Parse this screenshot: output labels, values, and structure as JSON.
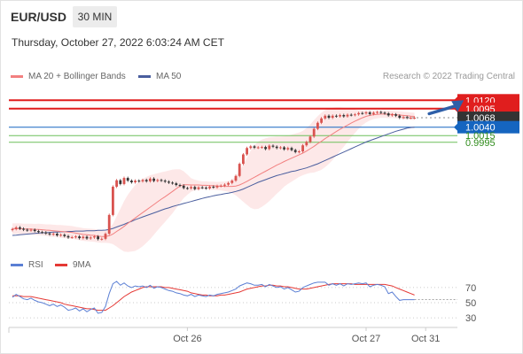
{
  "header": {
    "pair": "EUR/USD",
    "timeframe": "30 MIN"
  },
  "timestamp": "Thursday, October 27, 2022 6:03:24 AM CET",
  "credit": "Research © 2022 Trading Central",
  "colors": {
    "red": "#e01e1e",
    "blue": "#1565c0",
    "green": "#6cbf5a",
    "ma20": "#f28080",
    "ma50": "#4a5e9e",
    "band": "#fde6e6",
    "up": "#d9534f",
    "down": "#333333",
    "rsi": "#5b7fd4",
    "rsi_ma": "#e53935",
    "current": "#333333"
  },
  "chart_data": [
    {
      "type": "line",
      "title": "",
      "legend": {
        "placement": "top-left",
        "items": [
          {
            "label": "MA 20 + Bollinger Bands",
            "color": "#f28080"
          },
          {
            "label": "MA 50",
            "color": "#4a5e9e"
          }
        ]
      },
      "x_ticks": [
        {
          "label": "Oct 26",
          "index": 47
        },
        {
          "label": "Oct 27",
          "index": 95
        },
        {
          "label": "Oct 31",
          "index": 111
        }
      ],
      "ylim": [
        0.9676,
        1.0155
      ],
      "levels": [
        {
          "value": 1.012,
          "label": "1.0120",
          "style": "resistance"
        },
        {
          "value": 1.0095,
          "label": "1.0095",
          "style": "resistance"
        },
        {
          "value": 1.0068,
          "label": "1.0068",
          "style": "current"
        },
        {
          "value": 1.004,
          "label": "1.0040",
          "style": "pivot"
        },
        {
          "value": 1.0015,
          "label": "1.0015",
          "style": "support"
        },
        {
          "value": 0.9995,
          "label": "0.9995",
          "style": "support"
        }
      ],
      "series": [
        {
          "key": "close",
          "values": [
            0.9737,
            0.9742,
            0.9738,
            0.9735,
            0.9733,
            0.9735,
            0.9731,
            0.9728,
            0.9727,
            0.9724,
            0.9721,
            0.9723,
            0.9718,
            0.972,
            0.9716,
            0.9712,
            0.9713,
            0.9715,
            0.971,
            0.9714,
            0.9709,
            0.9712,
            0.9715,
            0.9707,
            0.9708,
            0.9723,
            0.9779,
            0.9863,
            0.9882,
            0.9871,
            0.9889,
            0.9881,
            0.9876,
            0.9881,
            0.9879,
            0.9883,
            0.9879,
            0.9887,
            0.988,
            0.9883,
            0.9881,
            0.9878,
            0.9875,
            0.9873,
            0.9868,
            0.9866,
            0.9859,
            0.9858,
            0.9862,
            0.9856,
            0.9861,
            0.986,
            0.9858,
            0.9863,
            0.9861,
            0.9865,
            0.9866,
            0.9869,
            0.9874,
            0.9881,
            0.9895,
            0.9931,
            0.9959,
            0.9978,
            0.9983,
            0.9979,
            0.998,
            0.9981,
            0.9975,
            0.9985,
            0.9982,
            0.9978,
            0.998,
            0.9974,
            0.9978,
            0.9972,
            0.9966,
            0.9968,
            0.9986,
            0.9996,
            1.0012,
            1.0035,
            1.0053,
            1.0066,
            1.0074,
            1.0068,
            1.0074,
            1.0072,
            1.0076,
            1.0072,
            1.0077,
            1.0076,
            1.0078,
            1.0082,
            1.0081,
            1.0084,
            1.0079,
            1.0083,
            1.0085,
            1.0083,
            1.0081,
            1.0075,
            1.0078,
            1.0074,
            1.0068,
            1.007,
            1.0068,
            1.0068,
            1.0068
          ]
        },
        {
          "key": "ma20",
          "values": [
            0.9738,
            0.9738,
            0.9738,
            0.9737,
            0.9737,
            0.9737,
            0.9736,
            0.9736,
            0.9735,
            0.9734,
            0.9733,
            0.9732,
            0.9731,
            0.973,
            0.9729,
            0.9728,
            0.9727,
            0.9725,
            0.9723,
            0.9721,
            0.972,
            0.9719,
            0.9718,
            0.9716,
            0.9715,
            0.9715,
            0.9717,
            0.9722,
            0.973,
            0.9737,
            0.9745,
            0.9754,
            0.9762,
            0.977,
            0.9778,
            0.9786,
            0.9794,
            0.9802,
            0.981,
            0.9818,
            0.9826,
            0.9833,
            0.9841,
            0.9849,
            0.9857,
            0.9865,
            0.9869,
            0.9869,
            0.9868,
            0.9868,
            0.9868,
            0.9867,
            0.9867,
            0.9866,
            0.9866,
            0.9865,
            0.9865,
            0.9864,
            0.9864,
            0.9864,
            0.9865,
            0.9868,
            0.9873,
            0.9879,
            0.9885,
            0.9891,
            0.9897,
            0.9903,
            0.9909,
            0.9915,
            0.9921,
            0.9927,
            0.9932,
            0.9938,
            0.9943,
            0.9948,
            0.9953,
            0.9958,
            0.9963,
            0.9969,
            0.9976,
            0.9983,
            0.9991,
            0.9998,
            1.0006,
            1.0013,
            1.002,
            1.0027,
            1.0034,
            1.004,
            1.0046,
            1.0052,
            1.0058,
            1.0063,
            1.0068,
            1.0072,
            1.0075,
            1.0077,
            1.0078,
            1.0079,
            1.0079,
            1.0078,
            1.0078,
            1.0077,
            1.0076,
            1.0075,
            1.0074,
            1.0073,
            1.0072
          ]
        },
        {
          "key": "ma50",
          "values": [
            0.9718,
            0.9719,
            0.972,
            0.9721,
            0.9722,
            0.9723,
            0.9724,
            0.9725,
            0.9726,
            0.9726,
            0.9727,
            0.9728,
            0.9728,
            0.9729,
            0.9729,
            0.973,
            0.973,
            0.9731,
            0.9731,
            0.9731,
            0.9732,
            0.9732,
            0.9732,
            0.9733,
            0.9733,
            0.9734,
            0.9736,
            0.9739,
            0.9743,
            0.9747,
            0.9751,
            0.9756,
            0.976,
            0.9765,
            0.9769,
            0.9773,
            0.9777,
            0.9781,
            0.9785,
            0.9789,
            0.9793,
            0.9797,
            0.98,
            0.9804,
            0.9807,
            0.981,
            0.9813,
            0.9816,
            0.9819,
            0.9822,
            0.9825,
            0.9828,
            0.9831,
            0.9833,
            0.9836,
            0.9838,
            0.984,
            0.9842,
            0.9844,
            0.9846,
            0.9849,
            0.9852,
            0.9856,
            0.9861,
            0.9866,
            0.9871,
            0.9876,
            0.988,
            0.9884,
            0.9888,
            0.9892,
            0.9896,
            0.9899,
            0.9902,
            0.9905,
            0.9908,
            0.991,
            0.9913,
            0.9916,
            0.9919,
            0.9923,
            0.9927,
            0.9931,
            0.9936,
            0.9941,
            0.9946,
            0.9951,
            0.9956,
            0.9961,
            0.9966,
            0.9971,
            0.9976,
            0.9981,
            0.9986,
            0.9991,
            0.9996,
            1.0,
            1.0004,
            1.0008,
            1.0012,
            1.0016,
            1.002,
            1.0024,
            1.0028,
            1.0031,
            1.0034,
            1.0037,
            1.0039,
            1.004
          ]
        }
      ],
      "bollinger_band_width": [
        0.0016,
        0.0016,
        0.0016,
        0.0016,
        0.0016,
        0.0016,
        0.0016,
        0.0017,
        0.0017,
        0.0017,
        0.0018,
        0.0018,
        0.0018,
        0.0019,
        0.0019,
        0.0019,
        0.0019,
        0.0019,
        0.0019,
        0.0019,
        0.0019,
        0.0019,
        0.0019,
        0.0019,
        0.0019,
        0.0019,
        0.0022,
        0.003,
        0.0045,
        0.006,
        0.0075,
        0.0085,
        0.0092,
        0.0098,
        0.01,
        0.01,
        0.0098,
        0.0095,
        0.009,
        0.0085,
        0.008,
        0.0075,
        0.007,
        0.0065,
        0.0058,
        0.005,
        0.004,
        0.003,
        0.002,
        0.0016,
        0.0013,
        0.0012,
        0.0012,
        0.0012,
        0.0012,
        0.0012,
        0.0013,
        0.0014,
        0.0016,
        0.002,
        0.0028,
        0.004,
        0.0055,
        0.007,
        0.0085,
        0.0095,
        0.01,
        0.01,
        0.0098,
        0.0095,
        0.009,
        0.0085,
        0.008,
        0.0075,
        0.0072,
        0.007,
        0.0068,
        0.0066,
        0.0066,
        0.0068,
        0.0072,
        0.0078,
        0.0082,
        0.0085,
        0.0085,
        0.0082,
        0.0078,
        0.0072,
        0.0065,
        0.0058,
        0.005,
        0.0042,
        0.0035,
        0.0028,
        0.0022,
        0.0018,
        0.0015,
        0.0013,
        0.0012,
        0.0011,
        0.0011,
        0.0011,
        0.0011,
        0.0011,
        0.0011,
        0.0011,
        0.0011,
        0.0011,
        0.0011
      ],
      "projection": {
        "from_index": 111,
        "from_value": 1.008,
        "to_index": 121,
        "to_value": 1.012
      }
    },
    {
      "type": "line",
      "title": "",
      "legend": {
        "placement": "top-left",
        "items": [
          {
            "label": "RSI",
            "color": "#5b7fd4"
          },
          {
            "label": "9MA",
            "color": "#e53935"
          }
        ]
      },
      "ylim": [
        22,
        78
      ],
      "y_ticks": [
        {
          "value": 70,
          "label": "70"
        },
        {
          "value": 50,
          "label": "50"
        },
        {
          "value": 30,
          "label": "30"
        }
      ],
      "series": [
        {
          "key": "rsi",
          "values": [
            57,
            61,
            58,
            55,
            54,
            56,
            53,
            51,
            50,
            48,
            46,
            48,
            45,
            47,
            44,
            40,
            41,
            43,
            39,
            42,
            38,
            41,
            43,
            36,
            37,
            45,
            62,
            75,
            78,
            73,
            76,
            72,
            70,
            72,
            71,
            72,
            70,
            73,
            69,
            71,
            70,
            68,
            66,
            65,
            63,
            62,
            60,
            59,
            61,
            58,
            60,
            59,
            58,
            60,
            59,
            61,
            62,
            63,
            64,
            66,
            68,
            72,
            74,
            76,
            75,
            73,
            73,
            74,
            71,
            74,
            72,
            70,
            71,
            68,
            70,
            67,
            64,
            65,
            70,
            72,
            74,
            76,
            77,
            77,
            77,
            73,
            75,
            73,
            75,
            72,
            75,
            74,
            75,
            76,
            75,
            76,
            71,
            73,
            74,
            73,
            71,
            62,
            64,
            58,
            53,
            54,
            54,
            54,
            54
          ]
        },
        {
          "key": "ma9",
          "values": [
            59,
            59,
            59,
            58,
            58,
            58,
            57,
            56,
            55,
            54,
            53,
            52,
            51,
            50,
            48,
            47,
            46,
            45,
            44,
            43,
            42,
            42,
            41,
            40,
            40,
            40,
            43,
            46,
            50,
            54,
            58,
            61,
            64,
            66,
            68,
            70,
            71,
            71,
            71,
            71,
            71,
            70,
            70,
            69,
            68,
            67,
            66,
            65,
            63,
            62,
            61,
            60,
            60,
            59,
            59,
            59,
            60,
            60,
            61,
            62,
            63,
            64,
            66,
            68,
            69,
            70,
            71,
            72,
            72,
            73,
            73,
            72,
            72,
            71,
            71,
            70,
            69,
            68,
            68,
            68,
            69,
            70,
            71,
            72,
            73,
            74,
            75,
            75,
            75,
            75,
            75,
            75,
            74,
            74,
            74,
            74,
            74,
            74,
            74,
            74,
            74,
            73,
            72,
            70,
            68,
            66,
            64,
            62,
            60
          ]
        }
      ]
    }
  ]
}
